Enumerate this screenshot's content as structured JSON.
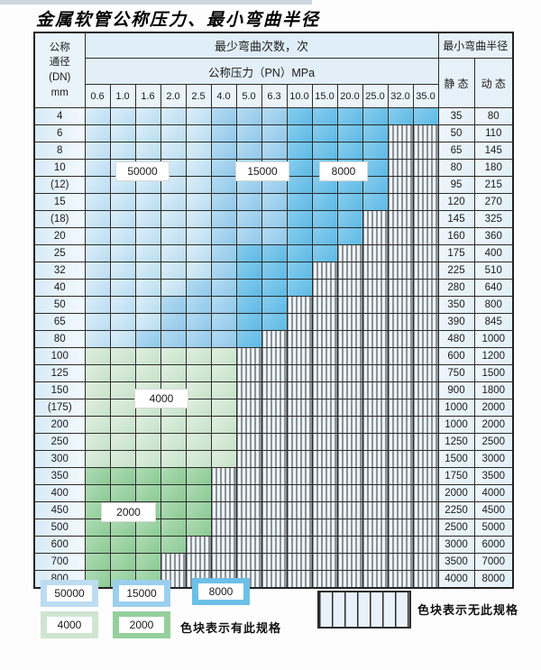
{
  "title": "金属软管公称压力、最小弯曲半径",
  "table": {
    "corner_lines": [
      "公称",
      "通径",
      "(DN)",
      "mm"
    ],
    "bend_times_header": "最少弯曲次数，次",
    "pressure_header": "公称压力（PN）MPa",
    "radius_header": "最小弯曲半径",
    "static_label": "静 态",
    "dynamic_label": "动 态",
    "pressure_columns": [
      "0.6",
      "1.0",
      "1.6",
      "2.0",
      "2.5",
      "4.0",
      "5.0",
      "6.3",
      "10.0",
      "15.0",
      "20.0",
      "25.0",
      "32.0",
      "35.0"
    ],
    "cell_code_meaning": {
      "L": "50000次",
      "M": "15000次",
      "D": "8000次",
      "G4": "4000次",
      "G2": "2000次",
      "H": "无此规格"
    },
    "rows": [
      {
        "dn": "4",
        "static": "35",
        "dynamic": "80",
        "cells": [
          "L",
          "L",
          "L",
          "L",
          "L",
          "M",
          "M",
          "M",
          "D",
          "D",
          "D",
          "D",
          "D",
          "D"
        ]
      },
      {
        "dn": "6",
        "static": "50",
        "dynamic": "110",
        "cells": [
          "L",
          "L",
          "L",
          "L",
          "L",
          "M",
          "M",
          "M",
          "D",
          "D",
          "D",
          "D",
          "H",
          "H"
        ]
      },
      {
        "dn": "8",
        "static": "65",
        "dynamic": "145",
        "cells": [
          "L",
          "L",
          "L",
          "L",
          "L",
          "M",
          "M",
          "M",
          "D",
          "D",
          "D",
          "D",
          "H",
          "H"
        ]
      },
      {
        "dn": "10",
        "static": "80",
        "dynamic": "180",
        "cells": [
          "L",
          "L",
          "L",
          "L",
          "L",
          "M",
          "M",
          "M",
          "D",
          "D",
          "D",
          "D",
          "H",
          "H"
        ]
      },
      {
        "dn": "(12)",
        "static": "95",
        "dynamic": "215",
        "cells": [
          "L",
          "L",
          "L",
          "L",
          "L",
          "M",
          "M",
          "M",
          "D",
          "D",
          "D",
          "D",
          "H",
          "H"
        ]
      },
      {
        "dn": "15",
        "static": "120",
        "dynamic": "270",
        "cells": [
          "L",
          "L",
          "L",
          "L",
          "L",
          "M",
          "M",
          "M",
          "D",
          "D",
          "D",
          "D",
          "H",
          "H"
        ]
      },
      {
        "dn": "(18)",
        "static": "145",
        "dynamic": "325",
        "cells": [
          "L",
          "L",
          "L",
          "L",
          "L",
          "M",
          "M",
          "M",
          "D",
          "D",
          "D",
          "H",
          "H",
          "H"
        ]
      },
      {
        "dn": "20",
        "static": "160",
        "dynamic": "360",
        "cells": [
          "L",
          "L",
          "L",
          "L",
          "L",
          "M",
          "M",
          "M",
          "D",
          "D",
          "D",
          "H",
          "H",
          "H"
        ]
      },
      {
        "dn": "25",
        "static": "175",
        "dynamic": "400",
        "cells": [
          "L",
          "L",
          "L",
          "L",
          "L",
          "M",
          "D",
          "D",
          "D",
          "D",
          "H",
          "H",
          "H",
          "H"
        ]
      },
      {
        "dn": "32",
        "static": "225",
        "dynamic": "510",
        "cells": [
          "L",
          "L",
          "L",
          "L",
          "L",
          "M",
          "D",
          "D",
          "D",
          "H",
          "H",
          "H",
          "H",
          "H"
        ]
      },
      {
        "dn": "40",
        "static": "280",
        "dynamic": "640",
        "cells": [
          "L",
          "L",
          "L",
          "L",
          "M",
          "M",
          "D",
          "D",
          "D",
          "H",
          "H",
          "H",
          "H",
          "H"
        ]
      },
      {
        "dn": "50",
        "static": "350",
        "dynamic": "800",
        "cells": [
          "L",
          "L",
          "L",
          "M",
          "M",
          "M",
          "D",
          "D",
          "H",
          "H",
          "H",
          "H",
          "H",
          "H"
        ]
      },
      {
        "dn": "65",
        "static": "390",
        "dynamic": "845",
        "cells": [
          "L",
          "L",
          "L",
          "M",
          "M",
          "M",
          "D",
          "D",
          "H",
          "H",
          "H",
          "H",
          "H",
          "H"
        ]
      },
      {
        "dn": "80",
        "static": "480",
        "dynamic": "1000",
        "cells": [
          "L",
          "L",
          "M",
          "M",
          "M",
          "M",
          "D",
          "H",
          "H",
          "H",
          "H",
          "H",
          "H",
          "H"
        ]
      },
      {
        "dn": "100",
        "static": "600",
        "dynamic": "1200",
        "cells": [
          "G4",
          "G4",
          "G4",
          "G4",
          "G4",
          "G4",
          "H",
          "H",
          "H",
          "H",
          "H",
          "H",
          "H",
          "H"
        ]
      },
      {
        "dn": "125",
        "static": "750",
        "dynamic": "1500",
        "cells": [
          "G4",
          "G4",
          "G4",
          "G4",
          "G4",
          "G4",
          "H",
          "H",
          "H",
          "H",
          "H",
          "H",
          "H",
          "H"
        ]
      },
      {
        "dn": "150",
        "static": "900",
        "dynamic": "1800",
        "cells": [
          "G4",
          "G4",
          "G4",
          "G4",
          "G4",
          "G4",
          "H",
          "H",
          "H",
          "H",
          "H",
          "H",
          "H",
          "H"
        ]
      },
      {
        "dn": "(175)",
        "static": "1000",
        "dynamic": "2000",
        "cells": [
          "G4",
          "G4",
          "G4",
          "G4",
          "G4",
          "G4",
          "H",
          "H",
          "H",
          "H",
          "H",
          "H",
          "H",
          "H"
        ]
      },
      {
        "dn": "200",
        "static": "1000",
        "dynamic": "2000",
        "cells": [
          "G4",
          "G4",
          "G4",
          "G4",
          "G4",
          "G4",
          "H",
          "H",
          "H",
          "H",
          "H",
          "H",
          "H",
          "H"
        ]
      },
      {
        "dn": "250",
        "static": "1250",
        "dynamic": "2500",
        "cells": [
          "G4",
          "G4",
          "G4",
          "G4",
          "G4",
          "G4",
          "H",
          "H",
          "H",
          "H",
          "H",
          "H",
          "H",
          "H"
        ]
      },
      {
        "dn": "300",
        "static": "1500",
        "dynamic": "3000",
        "cells": [
          "G4",
          "G4",
          "G4",
          "G4",
          "G4",
          "G4",
          "H",
          "H",
          "H",
          "H",
          "H",
          "H",
          "H",
          "H"
        ]
      },
      {
        "dn": "350",
        "static": "1750",
        "dynamic": "3500",
        "cells": [
          "G2",
          "G2",
          "G2",
          "G2",
          "G2",
          "H",
          "H",
          "H",
          "H",
          "H",
          "H",
          "H",
          "H",
          "H"
        ]
      },
      {
        "dn": "400",
        "static": "2000",
        "dynamic": "4000",
        "cells": [
          "G2",
          "G2",
          "G2",
          "G2",
          "G2",
          "H",
          "H",
          "H",
          "H",
          "H",
          "H",
          "H",
          "H",
          "H"
        ]
      },
      {
        "dn": "450",
        "static": "2250",
        "dynamic": "4500",
        "cells": [
          "G2",
          "G2",
          "G2",
          "G2",
          "G2",
          "H",
          "H",
          "H",
          "H",
          "H",
          "H",
          "H",
          "H",
          "H"
        ]
      },
      {
        "dn": "500",
        "static": "2500",
        "dynamic": "5000",
        "cells": [
          "G2",
          "G2",
          "G2",
          "G2",
          "G2",
          "H",
          "H",
          "H",
          "H",
          "H",
          "H",
          "H",
          "H",
          "H"
        ]
      },
      {
        "dn": "600",
        "static": "3000",
        "dynamic": "6000",
        "cells": [
          "G2",
          "G2",
          "G2",
          "G2",
          "H",
          "H",
          "H",
          "H",
          "H",
          "H",
          "H",
          "H",
          "H",
          "H"
        ]
      },
      {
        "dn": "700",
        "static": "3500",
        "dynamic": "7000",
        "cells": [
          "G2",
          "G2",
          "G2",
          "H",
          "H",
          "H",
          "H",
          "H",
          "H",
          "H",
          "H",
          "H",
          "H",
          "H"
        ]
      },
      {
        "dn": "800",
        "static": "4000",
        "dynamic": "8000",
        "cells": [
          "G2",
          "G2",
          "G2",
          "H",
          "H",
          "H",
          "H",
          "H",
          "H",
          "H",
          "H",
          "H",
          "H",
          "H"
        ]
      }
    ]
  },
  "overlays": [
    {
      "text": "50000"
    },
    {
      "text": "15000"
    },
    {
      "text": "8000"
    },
    {
      "text": "4000"
    },
    {
      "text": "2000"
    }
  ],
  "legend": {
    "swatches": [
      {
        "label": "50000"
      },
      {
        "label": "15000"
      },
      {
        "label": "8000"
      },
      {
        "label": "4000"
      },
      {
        "label": "2000"
      }
    ],
    "has_spec_text": "色块表示有此规格",
    "no_spec_text": "色块表示无此规格"
  },
  "colors": {
    "cycles_50000": "#bcdcf2",
    "cycles_15000": "#9bcfee",
    "cycles_8000": "#6cc0e8",
    "cycles_4000": "#cfe5d0",
    "cycles_2000": "#95cf9d",
    "no_spec_bg": "#ecf4fb",
    "grid_border": "#2b2b2b"
  }
}
